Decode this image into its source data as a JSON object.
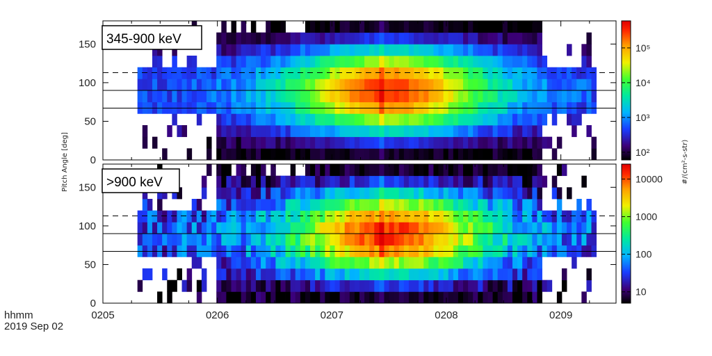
{
  "chart_data": {
    "type": "heatmap",
    "y_axis_label": "Pitch Angle [deg]",
    "colorbar_label": "#/(cm²-s-str)",
    "time_axis": {
      "title_line1": "hhmm",
      "title_line2": "2019 Sep 02",
      "tick_labels": [
        "0205",
        "0206",
        "0207",
        "0208",
        "0209"
      ],
      "range_hours": [
        2.0833,
        2.158
      ]
    },
    "panels": [
      {
        "label": "345-900 keV",
        "ylim": [
          0,
          180
        ],
        "yticks": [
          0,
          50,
          100,
          150
        ],
        "color_scale": "log",
        "color_range": [
          60,
          600000
        ],
        "colorbar_ticks": [
          {
            "value": 100,
            "label": "10²"
          },
          {
            "value": 1000,
            "label": "10³"
          },
          {
            "value": 10000,
            "label": "10⁴"
          },
          {
            "value": 100000,
            "label": "10⁵"
          }
        ],
        "peak_flux": 300000,
        "reference_lines": {
          "solid": [
            90,
            67
          ],
          "dashed": [
            113
          ]
        }
      },
      {
        "label": ">900 keV",
        "ylim": [
          0,
          180
        ],
        "yticks": [
          0,
          50,
          100,
          150
        ],
        "color_scale": "log",
        "color_range": [
          5,
          25000
        ],
        "colorbar_ticks": [
          {
            "value": 10,
            "label": "10"
          },
          {
            "value": 100,
            "label": "100"
          },
          {
            "value": 1000,
            "label": "1000"
          },
          {
            "value": 10000,
            "label": "10000"
          }
        ],
        "peak_flux": 15000,
        "reference_lines": {
          "solid": [
            90,
            67
          ],
          "dashed": [
            113
          ]
        }
      }
    ]
  }
}
